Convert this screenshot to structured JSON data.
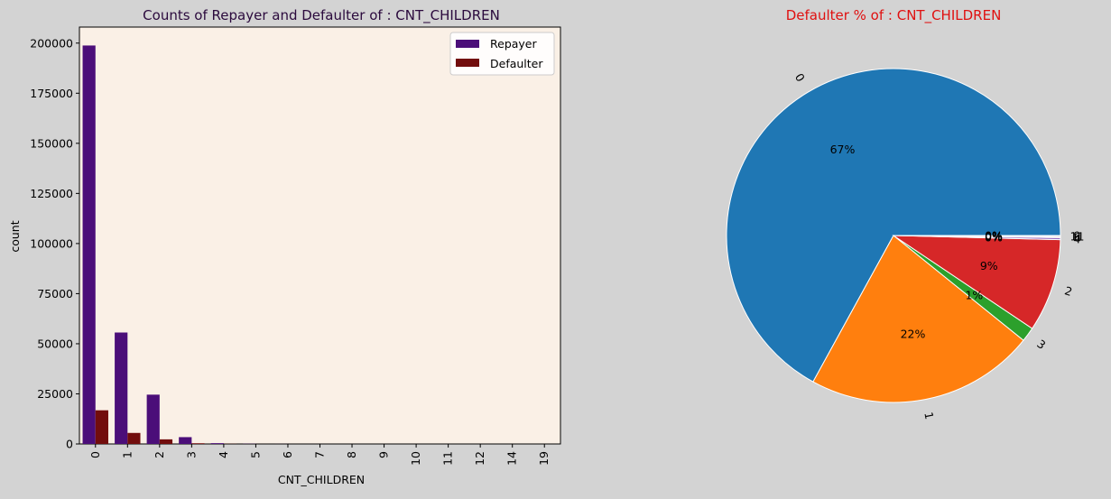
{
  "chart_data": [
    {
      "type": "bar",
      "title": "Counts of Repayer and Defaulter of : CNT_CHILDREN",
      "xlabel": "CNT_CHILDREN",
      "ylabel": "count",
      "categories": [
        "0",
        "1",
        "2",
        "3",
        "4",
        "5",
        "6",
        "7",
        "8",
        "9",
        "10",
        "11",
        "12",
        "14",
        "19"
      ],
      "ylim": [
        0,
        208000
      ],
      "yticks": [
        0,
        25000,
        50000,
        75000,
        100000,
        125000,
        150000,
        175000,
        200000
      ],
      "legend_position": "top-right",
      "series": [
        {
          "name": "Repayer",
          "color": "#4b0e79",
          "values": [
            198800,
            55600,
            24600,
            3400,
            400,
            80,
            20,
            5,
            2,
            2,
            2,
            1,
            1,
            1,
            1
          ]
        },
        {
          "name": "Defaulter",
          "color": "#720d0d",
          "values": [
            16800,
            5500,
            2300,
            350,
            60,
            10,
            3,
            2,
            0,
            0,
            0,
            1,
            0,
            0,
            0
          ]
        }
      ]
    },
    {
      "type": "pie",
      "title": "Defaulter % of : CNT_CHILDREN",
      "slices": [
        {
          "label": "0",
          "value": 67.0,
          "pct_label": "67%"
        },
        {
          "label": "1",
          "value": 22.2,
          "pct_label": "22%"
        },
        {
          "label": "3",
          "value": 1.4,
          "pct_label": "1%"
        },
        {
          "label": "2",
          "value": 9.0,
          "pct_label": "9%"
        },
        {
          "label": "4",
          "value": 0.2,
          "pct_label": "0%"
        },
        {
          "label": "6",
          "value": 0.1,
          "pct_label": "0%"
        },
        {
          "label": "11",
          "value": 0.05,
          "pct_label": "0%"
        },
        {
          "label": "9",
          "value": 0.05,
          "pct_label": "0%"
        }
      ],
      "colors": [
        "#1f77b4",
        "#ff7f0e",
        "#2ca02c",
        "#d62728",
        "#9467bd",
        "#8c564b",
        "#e377c2",
        "#7f7f7f"
      ]
    }
  ]
}
